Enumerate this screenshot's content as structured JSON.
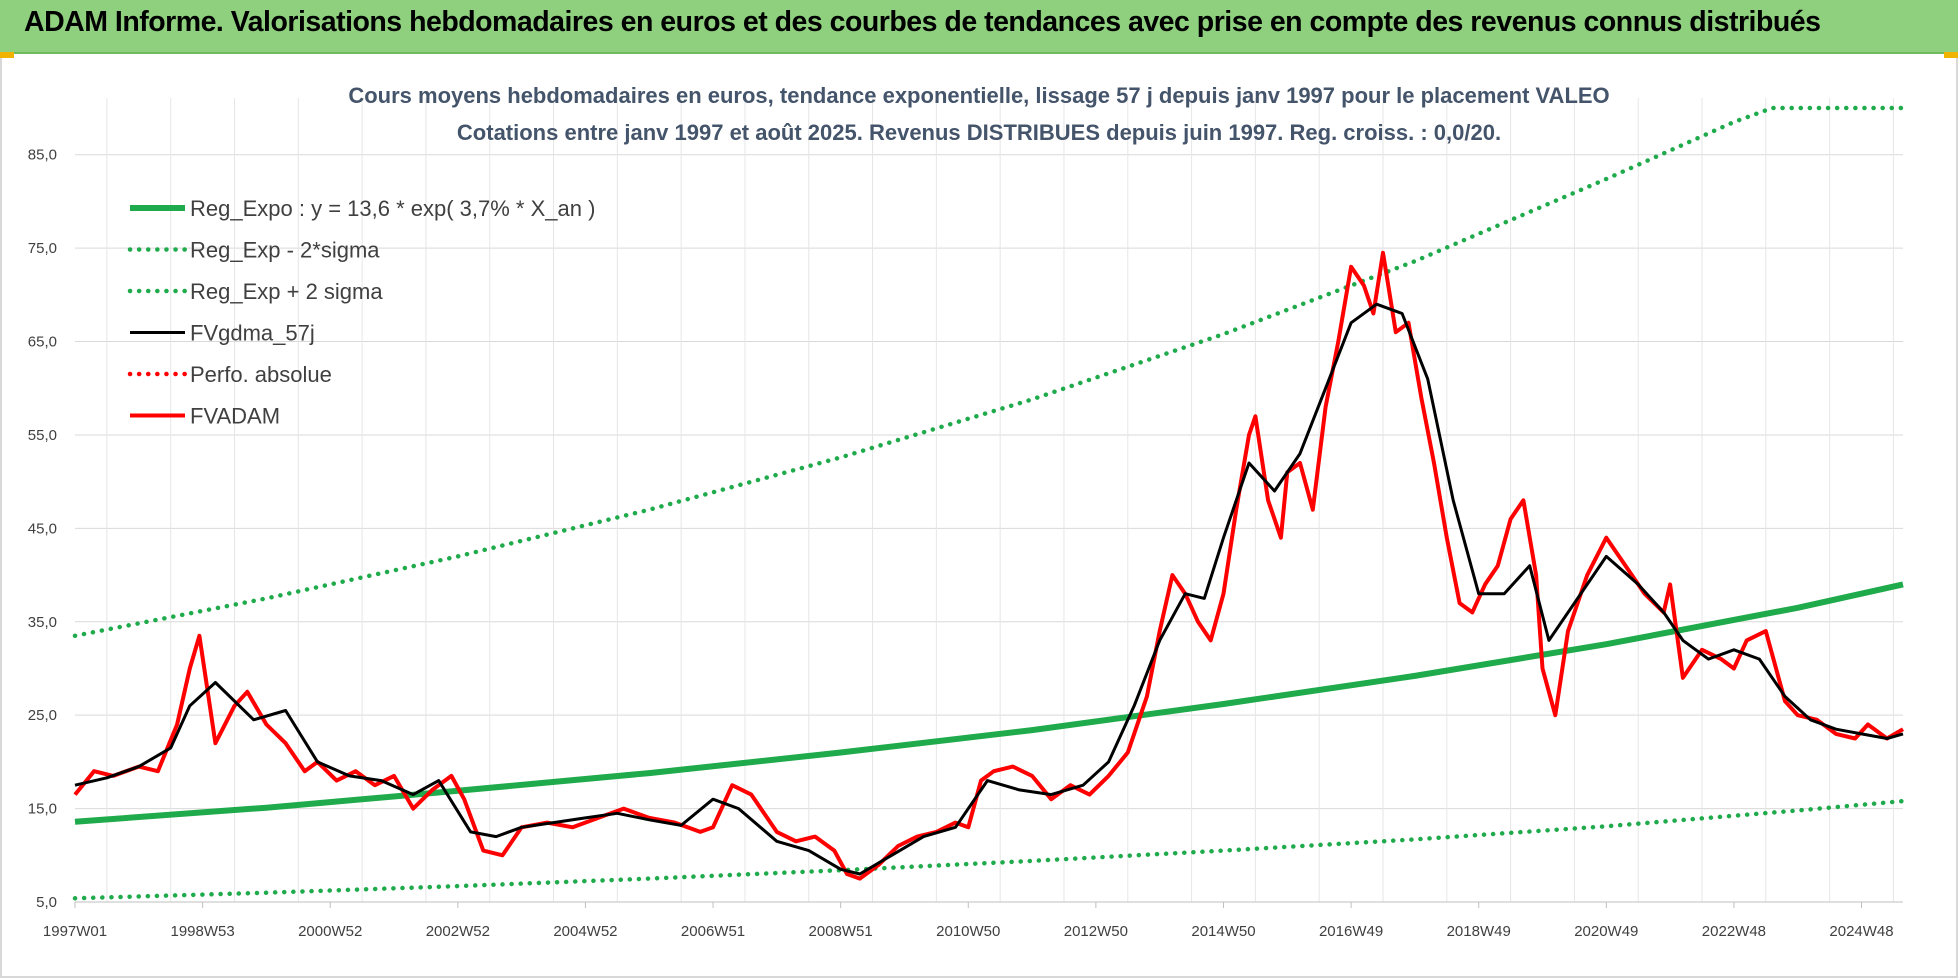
{
  "header": {
    "title": "ADAM Informe. Valorisations hebdomadaires en euros et des courbes de tendances avec prise en compte des revenus connus distribués"
  },
  "colors": {
    "header_bg": "#8fd07e",
    "reg_expo": "#1faa4b",
    "band": "#1faa4b",
    "fvgdma": "#000000",
    "fvadam": "#ff0000",
    "perfo": "#ff0000",
    "title": "#44546a"
  },
  "chart_data": {
    "type": "line",
    "title": "Cours moyens hebdomadaires en euros, tendance exponentielle, lissage 57 j depuis janv 1997 pour le placement VALEO",
    "subtitle": "Cotations entre janv 1997 et août 2025. Revenus DISTRIBUES depuis juin 1997. Reg. croiss. : 0,0/20.",
    "ylim": [
      5,
      90
    ],
    "xlim": [
      1997.0,
      2025.65
    ],
    "yticks": [
      "5,0",
      "15,0",
      "25,0",
      "35,0",
      "45,0",
      "55,0",
      "65,0",
      "75,0",
      "85,0"
    ],
    "ytick_values": [
      5,
      15,
      25,
      35,
      45,
      55,
      65,
      75,
      85
    ],
    "xticks": [
      {
        "label": "1997W01",
        "x": 1997.0
      },
      {
        "label": "1998W53",
        "x": 1999.0
      },
      {
        "label": "2000W52",
        "x": 2001.0
      },
      {
        "label": "2002W52",
        "x": 2003.0
      },
      {
        "label": "2004W52",
        "x": 2005.0
      },
      {
        "label": "2006W51",
        "x": 2007.0
      },
      {
        "label": "2008W51",
        "x": 2009.0
      },
      {
        "label": "2010W50",
        "x": 2011.0
      },
      {
        "label": "2012W50",
        "x": 2013.0
      },
      {
        "label": "2014W50",
        "x": 2015.0
      },
      {
        "label": "2016W49",
        "x": 2017.0
      },
      {
        "label": "2018W49",
        "x": 2019.0
      },
      {
        "label": "2020W49",
        "x": 2021.0
      },
      {
        "label": "2022W48",
        "x": 2023.0
      },
      {
        "label": "2024W48",
        "x": 2025.0
      }
    ],
    "grid": true,
    "legend_position": "top-left",
    "series": [
      {
        "name": "Reg_Expo : y = 13,6 * exp( 3,7% *  X_an )",
        "style": "solid-thick",
        "color": "#1faa4b",
        "x": [
          1997.0,
          2000.0,
          2003.0,
          2006.0,
          2009.0,
          2012.0,
          2015.0,
          2018.0,
          2021.0,
          2024.0,
          2025.65
        ],
        "y": [
          13.6,
          15.1,
          16.9,
          18.8,
          21.0,
          23.4,
          26.2,
          29.2,
          32.6,
          36.5,
          39.0
        ]
      },
      {
        "name": "Reg_Exp - 2*sigma",
        "style": "dotted",
        "color": "#1faa4b",
        "x": [
          1997.0,
          2000.0,
          2003.0,
          2006.0,
          2009.0,
          2012.0,
          2015.0,
          2018.0,
          2021.0,
          2024.0,
          2025.65
        ],
        "y": [
          5.4,
          6.0,
          6.7,
          7.5,
          8.4,
          9.4,
          10.5,
          11.7,
          13.1,
          14.8,
          15.8
        ]
      },
      {
        "name": "Reg_Exp + 2 sigma",
        "style": "dotted",
        "color": "#1faa4b",
        "x": [
          1997.0,
          2000.0,
          2003.0,
          2006.0,
          2009.0,
          2012.0,
          2015.0,
          2018.0,
          2021.0,
          2023.0,
          2023.6,
          2025.65
        ],
        "y": [
          33.5,
          37.5,
          42.0,
          47.0,
          52.6,
          58.8,
          65.8,
          73.6,
          82.4,
          88.5,
          90.0,
          90.0
        ]
      },
      {
        "name": "FVgdma_57j",
        "style": "solid",
        "color": "#000000",
        "x": [
          1997.0,
          1997.5,
          1998.0,
          1998.5,
          1998.8,
          1999.2,
          1999.8,
          2000.3,
          2000.8,
          2001.3,
          2001.8,
          2002.3,
          2002.7,
          2003.2,
          2003.6,
          2004.0,
          2004.5,
          2005.0,
          2005.5,
          2006.0,
          2006.5,
          2007.0,
          2007.4,
          2008.0,
          2008.5,
          2009.0,
          2009.3,
          2009.8,
          2010.3,
          2010.8,
          2011.3,
          2011.8,
          2012.3,
          2012.8,
          2013.2,
          2013.6,
          2014.0,
          2014.4,
          2014.7,
          2015.0,
          2015.4,
          2015.8,
          2016.2,
          2016.6,
          2017.0,
          2017.4,
          2017.8,
          2018.2,
          2018.6,
          2019.0,
          2019.4,
          2019.8,
          2020.1,
          2020.5,
          2021.0,
          2021.5,
          2021.9,
          2022.2,
          2022.6,
          2023.0,
          2023.4,
          2023.8,
          2024.2,
          2024.6,
          2025.0,
          2025.4,
          2025.65
        ],
        "y": [
          17.5,
          18.3,
          19.5,
          21.5,
          26.0,
          28.5,
          24.5,
          25.5,
          20.0,
          18.5,
          18.0,
          16.5,
          18.0,
          12.5,
          12.0,
          13.0,
          13.5,
          14.0,
          14.5,
          13.8,
          13.2,
          16.0,
          15.0,
          11.5,
          10.5,
          8.5,
          8.0,
          10.0,
          12.0,
          13.0,
          18.0,
          17.0,
          16.5,
          17.5,
          20.0,
          26.0,
          33.0,
          38.0,
          37.5,
          44.0,
          52.0,
          49.0,
          53.0,
          60.0,
          67.0,
          69.0,
          68.0,
          61.0,
          48.0,
          38.0,
          38.0,
          41.0,
          33.0,
          37.0,
          42.0,
          39.0,
          36.0,
          33.0,
          31.0,
          32.0,
          31.0,
          27.0,
          24.5,
          23.5,
          23.0,
          22.5,
          23.0
        ]
      },
      {
        "name": "Perfo. absolue",
        "style": "dotted",
        "color": "#ff0000",
        "x": [],
        "y": []
      },
      {
        "name": "FVADAM",
        "style": "solid-thick",
        "color": "#ff0000",
        "x": [
          1997.0,
          1997.3,
          1997.6,
          1998.0,
          1998.3,
          1998.6,
          1998.8,
          1998.95,
          1999.2,
          1999.5,
          1999.7,
          2000.0,
          2000.3,
          2000.6,
          2000.8,
          2001.1,
          2001.4,
          2001.7,
          2002.0,
          2002.3,
          2002.6,
          2002.9,
          2003.1,
          2003.4,
          2003.7,
          2004.0,
          2004.4,
          2004.8,
          2005.2,
          2005.6,
          2006.0,
          2006.4,
          2006.8,
          2007.0,
          2007.3,
          2007.6,
          2008.0,
          2008.3,
          2008.6,
          2008.9,
          2009.1,
          2009.3,
          2009.6,
          2009.9,
          2010.2,
          2010.5,
          2010.8,
          2011.0,
          2011.2,
          2011.4,
          2011.7,
          2012.0,
          2012.3,
          2012.6,
          2012.9,
          2013.2,
          2013.5,
          2013.8,
          2014.0,
          2014.2,
          2014.4,
          2014.6,
          2014.8,
          2015.0,
          2015.2,
          2015.4,
          2015.5,
          2015.7,
          2015.9,
          2016.0,
          2016.2,
          2016.4,
          2016.6,
          2016.8,
          2017.0,
          2017.2,
          2017.35,
          2017.5,
          2017.7,
          2017.9,
          2018.1,
          2018.3,
          2018.5,
          2018.7,
          2018.9,
          2019.1,
          2019.3,
          2019.5,
          2019.7,
          2019.9,
          2020.0,
          2020.2,
          2020.4,
          2020.7,
          2021.0,
          2021.3,
          2021.6,
          2021.9,
          2022.0,
          2022.2,
          2022.5,
          2022.8,
          2023.0,
          2023.2,
          2023.5,
          2023.8,
          2024.0,
          2024.3,
          2024.6,
          2024.9,
          2025.1,
          2025.4,
          2025.65
        ],
        "y": [
          16.5,
          19.0,
          18.5,
          19.5,
          19.0,
          24.0,
          30.0,
          33.5,
          22.0,
          26.0,
          27.5,
          24.0,
          22.0,
          19.0,
          20.0,
          18.0,
          19.0,
          17.5,
          18.5,
          15.0,
          17.0,
          18.5,
          16.0,
          10.5,
          10.0,
          13.0,
          13.5,
          13.0,
          14.0,
          15.0,
          14.0,
          13.5,
          12.5,
          13.0,
          17.5,
          16.5,
          12.5,
          11.5,
          12.0,
          10.5,
          8.0,
          7.5,
          9.0,
          11.0,
          12.0,
          12.5,
          13.5,
          13.0,
          18.0,
          19.0,
          19.5,
          18.5,
          16.0,
          17.5,
          16.5,
          18.5,
          21.0,
          27.0,
          34.0,
          40.0,
          38.0,
          35.0,
          33.0,
          38.0,
          47.0,
          55.0,
          57.0,
          48.0,
          44.0,
          51.0,
          52.0,
          47.0,
          58.0,
          65.0,
          73.0,
          71.0,
          68.0,
          74.5,
          66.0,
          67.0,
          59.0,
          52.0,
          44.0,
          37.0,
          36.0,
          39.0,
          41.0,
          46.0,
          48.0,
          40.0,
          30.0,
          25.0,
          34.0,
          40.0,
          44.0,
          41.0,
          38.0,
          36.0,
          39.0,
          29.0,
          32.0,
          31.0,
          30.0,
          33.0,
          34.0,
          26.5,
          25.0,
          24.5,
          23.0,
          22.5,
          24.0,
          22.5,
          23.5
        ]
      }
    ]
  }
}
